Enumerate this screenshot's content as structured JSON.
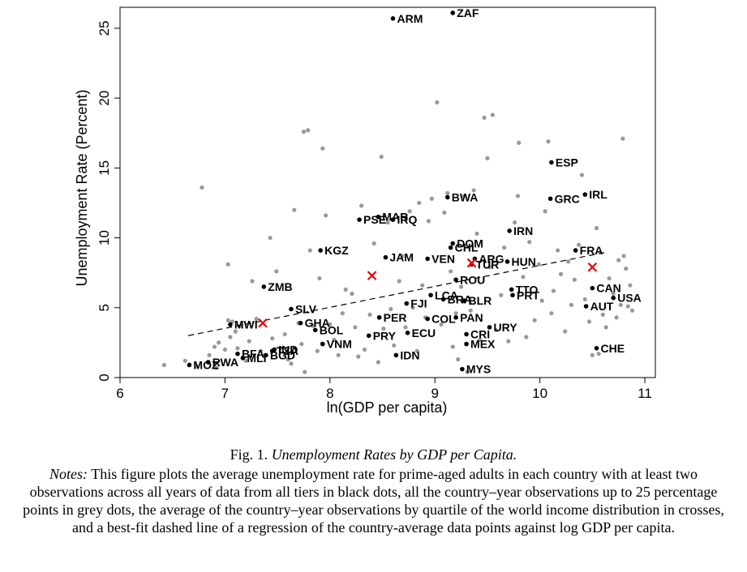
{
  "chart_data": {
    "type": "scatter",
    "xlabel": "ln(GDP per capita)",
    "ylabel": "Unemployment Rate (Percent)",
    "xlim": [
      6,
      11.1
    ],
    "ylim": [
      0,
      26.5
    ],
    "x_ticks": [
      6,
      7,
      8,
      9,
      10,
      11
    ],
    "y_ticks": [
      0,
      5,
      10,
      15,
      20,
      25
    ],
    "grid": false,
    "legend": "none",
    "colors": {
      "country_points": "#000000",
      "year_points": "#999999",
      "quartile_crosses": "#e8000b",
      "fit_line": "#000000"
    },
    "fit_line": {
      "style": "dashed",
      "x": [
        6.65,
        10.65
      ],
      "y": [
        3.0,
        9.0
      ]
    },
    "quartile_averages": [
      {
        "x": 7.36,
        "y": 3.9
      },
      {
        "x": 8.4,
        "y": 7.3
      },
      {
        "x": 9.35,
        "y": 8.2
      },
      {
        "x": 10.5,
        "y": 7.9
      }
    ],
    "country_averages": [
      {
        "label": "ZAF",
        "x": 9.17,
        "y": 26.1
      },
      {
        "label": "ARM",
        "x": 8.6,
        "y": 25.7
      },
      {
        "label": "ESP",
        "x": 10.11,
        "y": 15.4
      },
      {
        "label": "IRL",
        "x": 10.43,
        "y": 13.1
      },
      {
        "label": "GRC",
        "x": 10.1,
        "y": 12.8
      },
      {
        "label": "BWA",
        "x": 9.12,
        "y": 12.9
      },
      {
        "label": "PSE",
        "x": 8.28,
        "y": 11.3
      },
      {
        "label": "MAR",
        "x": 8.46,
        "y": 11.5
      },
      {
        "label": "IRQ",
        "x": 8.6,
        "y": 11.3
      },
      {
        "label": "IRN",
        "x": 9.71,
        "y": 10.5
      },
      {
        "label": "DOM",
        "x": 9.17,
        "y": 9.6
      },
      {
        "label": "CHL",
        "x": 9.15,
        "y": 9.3
      },
      {
        "label": "KGZ",
        "x": 7.91,
        "y": 9.1
      },
      {
        "label": "FRA",
        "x": 10.34,
        "y": 9.1
      },
      {
        "label": "JAM",
        "x": 8.53,
        "y": 8.6
      },
      {
        "label": "VEN",
        "x": 8.93,
        "y": 8.5
      },
      {
        "label": "ARG",
        "x": 9.38,
        "y": 8.5
      },
      {
        "label": "HUN",
        "x": 9.69,
        "y": 8.3
      },
      {
        "label": "TUR",
        "x": 9.35,
        "y": 8.1
      },
      {
        "label": "ROU",
        "x": 9.2,
        "y": 7.0
      },
      {
        "label": "ZMB",
        "x": 7.37,
        "y": 6.5
      },
      {
        "label": "TTO",
        "x": 9.73,
        "y": 6.3
      },
      {
        "label": "CAN",
        "x": 10.5,
        "y": 6.4
      },
      {
        "label": "PRT",
        "x": 9.74,
        "y": 5.9
      },
      {
        "label": "LCA",
        "x": 8.96,
        "y": 5.9
      },
      {
        "label": "USA",
        "x": 10.7,
        "y": 5.7
      },
      {
        "label": "BRA",
        "x": 9.08,
        "y": 5.6
      },
      {
        "label": "BLR",
        "x": 9.28,
        "y": 5.5
      },
      {
        "label": "FJI",
        "x": 8.73,
        "y": 5.3
      },
      {
        "label": "AUT",
        "x": 10.44,
        "y": 5.1
      },
      {
        "label": "SLV",
        "x": 7.63,
        "y": 4.9
      },
      {
        "label": "PER",
        "x": 8.47,
        "y": 4.3
      },
      {
        "label": "COL",
        "x": 8.93,
        "y": 4.2
      },
      {
        "label": "PAN",
        "x": 9.2,
        "y": 4.3
      },
      {
        "label": "MWI",
        "x": 7.05,
        "y": 3.8
      },
      {
        "label": "GHA",
        "x": 7.72,
        "y": 3.9
      },
      {
        "label": "URY",
        "x": 9.52,
        "y": 3.6
      },
      {
        "label": "BOL",
        "x": 7.86,
        "y": 3.4
      },
      {
        "label": "ECU",
        "x": 8.74,
        "y": 3.2
      },
      {
        "label": "CRI",
        "x": 9.3,
        "y": 3.1
      },
      {
        "label": "PRY",
        "x": 8.37,
        "y": 3.0
      },
      {
        "label": "VNM",
        "x": 7.93,
        "y": 2.4
      },
      {
        "label": "MEX",
        "x": 9.3,
        "y": 2.4
      },
      {
        "label": "CHE",
        "x": 10.54,
        "y": 2.1
      },
      {
        "label": "IND",
        "x": 7.47,
        "y": 2.0
      },
      {
        "label": "TZA",
        "x": 7.45,
        "y": 1.9
      },
      {
        "label": "BFA",
        "x": 7.12,
        "y": 1.7
      },
      {
        "label": "MLI",
        "x": 7.17,
        "y": 1.4
      },
      {
        "label": "IDN",
        "x": 8.63,
        "y": 1.6
      },
      {
        "label": "BGD",
        "x": 7.39,
        "y": 1.6
      },
      {
        "label": "RWA",
        "x": 6.84,
        "y": 1.1
      },
      {
        "label": "MOZ",
        "x": 6.66,
        "y": 0.9
      },
      {
        "label": "MYS",
        "x": 9.26,
        "y": 0.6
      }
    ],
    "year_observations": [
      [
        6.42,
        0.9
      ],
      [
        6.62,
        1.2
      ],
      [
        6.73,
        0.8
      ],
      [
        6.78,
        13.6
      ],
      [
        6.85,
        1.6
      ],
      [
        6.9,
        2.2
      ],
      [
        6.92,
        0.7
      ],
      [
        6.94,
        2.5
      ],
      [
        7.0,
        2.0
      ],
      [
        7.03,
        4.1
      ],
      [
        7.03,
        8.1
      ],
      [
        7.05,
        2.9
      ],
      [
        7.07,
        4.0
      ],
      [
        7.1,
        3.3
      ],
      [
        7.12,
        2.1
      ],
      [
        7.15,
        3.7
      ],
      [
        7.2,
        1.2
      ],
      [
        7.23,
        2.6
      ],
      [
        7.26,
        6.9
      ],
      [
        7.3,
        4.2
      ],
      [
        7.34,
        1.9
      ],
      [
        7.38,
        1.6
      ],
      [
        7.43,
        10.0
      ],
      [
        7.45,
        2.8
      ],
      [
        7.49,
        7.6
      ],
      [
        7.53,
        2.1
      ],
      [
        7.57,
        3.1
      ],
      [
        7.6,
        1.3
      ],
      [
        7.63,
        1.0
      ],
      [
        7.66,
        12.0
      ],
      [
        7.7,
        3.9
      ],
      [
        7.73,
        2.4
      ],
      [
        7.75,
        17.6
      ],
      [
        7.76,
        0.4
      ],
      [
        7.79,
        17.7
      ],
      [
        7.81,
        9.1
      ],
      [
        7.84,
        3.7
      ],
      [
        7.88,
        1.9
      ],
      [
        7.9,
        7.1
      ],
      [
        7.93,
        16.4
      ],
      [
        7.96,
        11.6
      ],
      [
        8.0,
        3.8
      ],
      [
        8.04,
        2.7
      ],
      [
        8.08,
        1.6
      ],
      [
        8.12,
        4.6
      ],
      [
        8.15,
        6.3
      ],
      [
        8.21,
        6.0
      ],
      [
        8.24,
        3.6
      ],
      [
        8.27,
        1.5
      ],
      [
        8.3,
        12.3
      ],
      [
        8.33,
        2.0
      ],
      [
        8.38,
        4.5
      ],
      [
        8.42,
        9.6
      ],
      [
        8.46,
        1.1
      ],
      [
        8.49,
        15.8
      ],
      [
        8.51,
        3.5
      ],
      [
        8.55,
        11.1
      ],
      [
        8.58,
        4.9
      ],
      [
        8.61,
        2.3
      ],
      [
        8.66,
        6.9
      ],
      [
        8.69,
        8.7
      ],
      [
        8.72,
        3.6
      ],
      [
        8.76,
        11.9
      ],
      [
        8.79,
        5.0
      ],
      [
        8.83,
        1.9
      ],
      [
        8.85,
        12.5
      ],
      [
        8.88,
        6.6
      ],
      [
        8.91,
        4.3
      ],
      [
        8.94,
        11.2
      ],
      [
        8.97,
        12.8
      ],
      [
        9.02,
        19.7
      ],
      [
        9.06,
        3.8
      ],
      [
        9.09,
        11.8
      ],
      [
        9.12,
        13.2
      ],
      [
        9.15,
        7.6
      ],
      [
        9.17,
        2.2
      ],
      [
        9.2,
        4.6
      ],
      [
        9.22,
        1.3
      ],
      [
        9.25,
        6.5
      ],
      [
        9.28,
        13.0
      ],
      [
        9.31,
        0.4
      ],
      [
        9.34,
        4.8
      ],
      [
        9.37,
        13.4
      ],
      [
        9.4,
        10.3
      ],
      [
        9.43,
        2.7
      ],
      [
        9.47,
        18.6
      ],
      [
        9.5,
        15.7
      ],
      [
        9.52,
        7.9
      ],
      [
        9.55,
        18.8
      ],
      [
        9.58,
        3.4
      ],
      [
        9.63,
        5.9
      ],
      [
        9.66,
        9.3
      ],
      [
        9.7,
        2.6
      ],
      [
        9.76,
        11.1
      ],
      [
        9.79,
        13.0
      ],
      [
        9.8,
        16.8
      ],
      [
        9.84,
        7.2
      ],
      [
        9.87,
        2.9
      ],
      [
        9.9,
        9.7
      ],
      [
        9.95,
        4.1
      ],
      [
        9.99,
        8.1
      ],
      [
        10.02,
        5.5
      ],
      [
        10.05,
        11.9
      ],
      [
        10.08,
        16.9
      ],
      [
        10.11,
        4.6
      ],
      [
        10.13,
        6.2
      ],
      [
        10.17,
        9.1
      ],
      [
        10.2,
        7.4
      ],
      [
        10.24,
        3.3
      ],
      [
        10.27,
        8.3
      ],
      [
        10.3,
        5.2
      ],
      [
        10.33,
        7.0
      ],
      [
        10.37,
        9.5
      ],
      [
        10.4,
        14.5
      ],
      [
        10.43,
        5.6
      ],
      [
        10.47,
        4.0
      ],
      [
        10.5,
        1.6
      ],
      [
        10.54,
        10.7
      ],
      [
        10.56,
        1.7
      ],
      [
        10.6,
        4.5
      ],
      [
        10.63,
        3.6
      ],
      [
        10.66,
        7.1
      ],
      [
        10.7,
        6.0
      ],
      [
        10.73,
        4.3
      ],
      [
        10.75,
        8.4
      ],
      [
        10.77,
        5.2
      ],
      [
        10.79,
        17.1
      ],
      [
        10.8,
        8.7
      ],
      [
        10.82,
        7.8
      ],
      [
        10.84,
        5.1
      ],
      [
        10.86,
        6.6
      ],
      [
        10.88,
        4.8
      ]
    ]
  },
  "caption": {
    "fig_prefix": "Fig. 1.",
    "fig_title": "Unemployment Rates by GDP per Capita.",
    "notes_label": "Notes:",
    "notes_text": "This figure plots the average unemployment rate for prime-aged adults in each country with at least two observations across all years of data from all tiers in black dots, all the country–year observations up to 25 percentage points in grey dots, the average of the country–year observations by quartile of the world income distribution in crosses, and a best-fit dashed line of a regression of the country-average data points against log GDP per capita."
  }
}
